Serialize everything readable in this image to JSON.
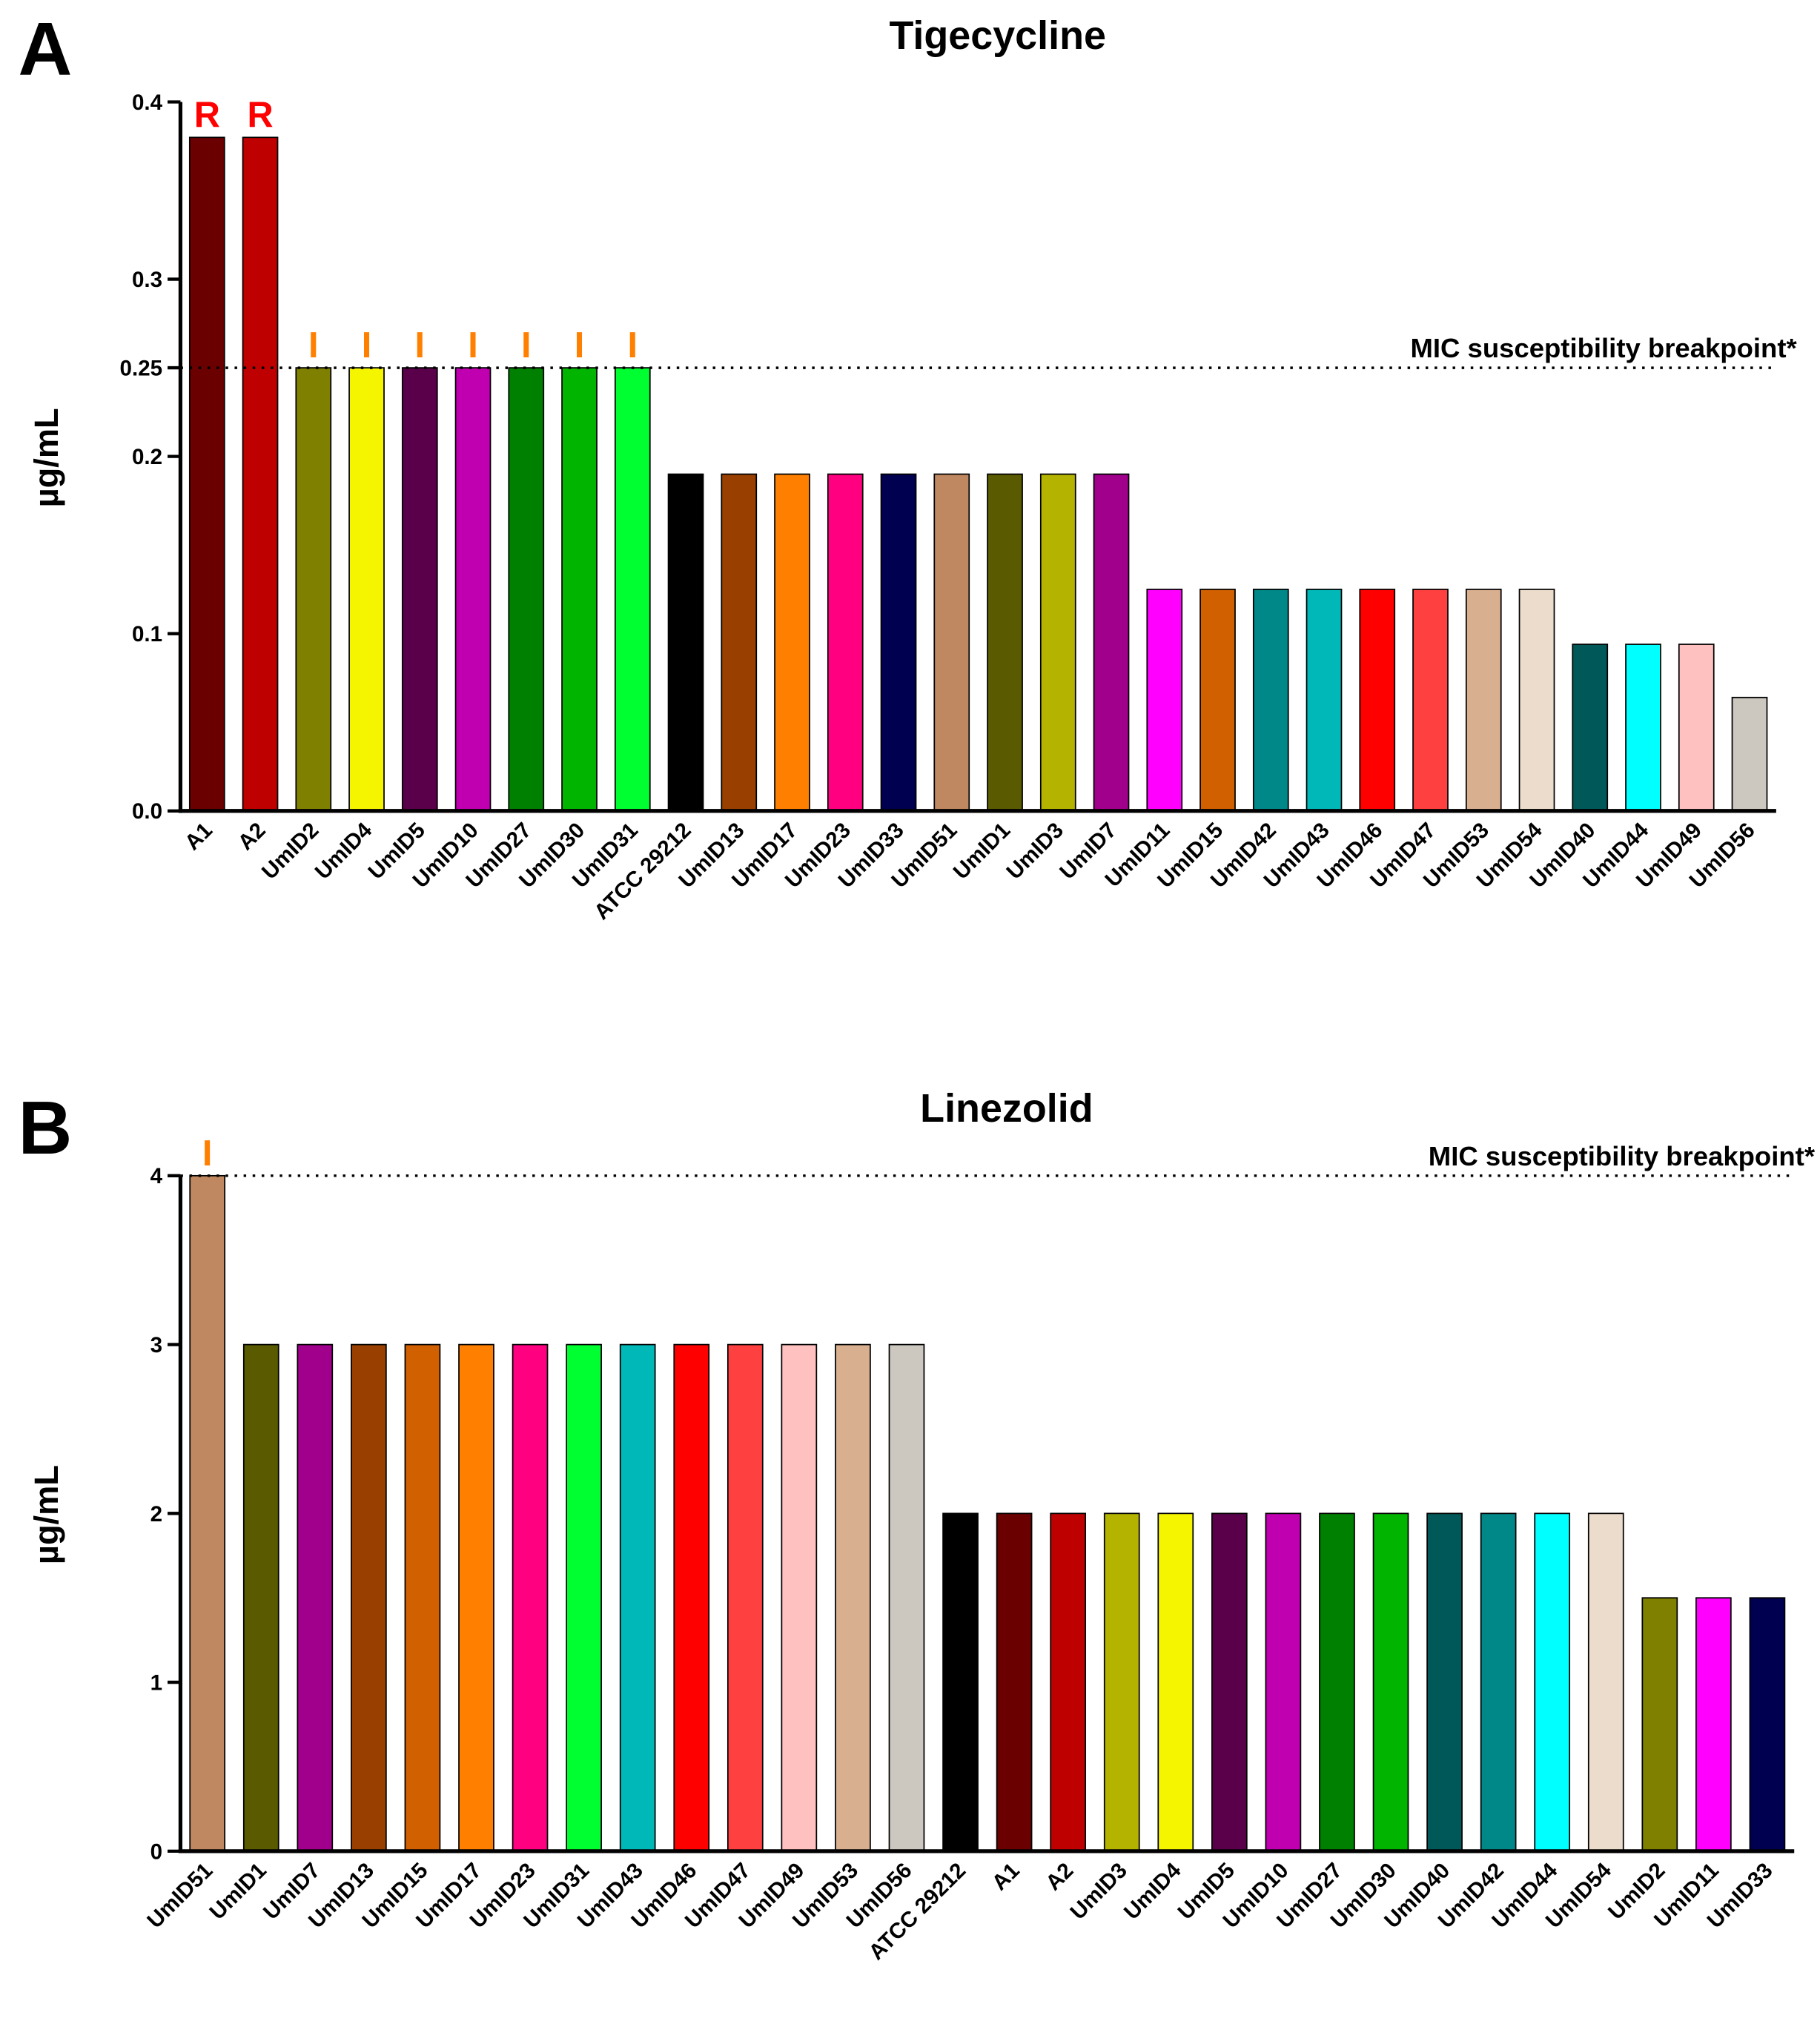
{
  "chart_data": [
    {
      "type": "bar",
      "panel": "A",
      "title": "Tigecycline",
      "y_label": "µg/mL",
      "categories": [
        "A1",
        "A2",
        "UmID2",
        "UmID4",
        "UmID5",
        "UmID10",
        "UmID27",
        "UmID30",
        "UmID31",
        "ATCC 29212",
        "UmID13",
        "UmID17",
        "UmID23",
        "UmID33",
        "UmID51",
        "UmID1",
        "UmID3",
        "UmID7",
        "UmID11",
        "UmID15",
        "UmID42",
        "UmID43",
        "UmID46",
        "UmID47",
        "UmID53",
        "UmID54",
        "UmID40",
        "UmID44",
        "UmID49",
        "UmID56"
      ],
      "values": [
        0.38,
        0.38,
        0.25,
        0.25,
        0.25,
        0.25,
        0.25,
        0.25,
        0.25,
        0.19,
        0.19,
        0.19,
        0.19,
        0.19,
        0.19,
        0.19,
        0.19,
        0.19,
        0.125,
        0.125,
        0.125,
        0.125,
        0.125,
        0.125,
        0.125,
        0.125,
        0.094,
        0.094,
        0.094,
        0.064
      ],
      "colors": [
        "#6b0000",
        "#bf0000",
        "#808000",
        "#f5f500",
        "#5a004a",
        "#c000b0",
        "#008000",
        "#00b400",
        "#00ff30",
        "#000000",
        "#994000",
        "#ff8000",
        "#ff0080",
        "#000050",
        "#c08860",
        "#5a5a00",
        "#b4b400",
        "#a0008c",
        "#ff00ff",
        "#d06000",
        "#008888",
        "#00b8b8",
        "#ff0000",
        "#ff4040",
        "#d8b090",
        "#ecdccc",
        "#005858",
        "#00ffff",
        "#ffc0c0",
        "#ccc8c0"
      ],
      "bar_labels": [
        "R",
        "R",
        "I",
        "I",
        "I",
        "I",
        "I",
        "I",
        "I",
        null,
        null,
        null,
        null,
        null,
        null,
        null,
        null,
        null,
        null,
        null,
        null,
        null,
        null,
        null,
        null,
        null,
        null,
        null,
        null,
        null
      ],
      "bar_label_colors": {
        "R": "#ff0000",
        "I": "#ff8000"
      },
      "reference_line": {
        "value": 0.25,
        "label": "MIC susceptibility breakpoint*"
      },
      "ylim": [
        0,
        0.4
      ],
      "yticks": [
        {
          "value": 0,
          "label": "0.0"
        },
        0.1,
        0.2,
        0.25,
        0.3,
        0.4
      ]
    },
    {
      "type": "bar",
      "panel": "B",
      "title": "Linezolid",
      "y_label": "µg/mL",
      "categories": [
        "UmID51",
        "UmID1",
        "UmID7",
        "UmID13",
        "UmID15",
        "UmID17",
        "UmID23",
        "UmID31",
        "UmID43",
        "UmID46",
        "UmID47",
        "UmID49",
        "UmID53",
        "UmID56",
        "ATCC 29212",
        "A1",
        "A2",
        "UmID3",
        "UmID4",
        "UmID5",
        "UmID10",
        "UmID27",
        "UmID30",
        "UmID40",
        "UmID42",
        "UmID44",
        "UmID54",
        "UmID2",
        "UmID11",
        "UmID33"
      ],
      "values": [
        4,
        3,
        3,
        3,
        3,
        3,
        3,
        3,
        3,
        3,
        3,
        3,
        3,
        3,
        2,
        2,
        2,
        2,
        2,
        2,
        2,
        2,
        2,
        2,
        2,
        2,
        2,
        1.5,
        1.5,
        1.5
      ],
      "colors": [
        "#c08860",
        "#5a5a00",
        "#a0008c",
        "#994000",
        "#d06000",
        "#ff8000",
        "#ff0080",
        "#00ff30",
        "#00b8b8",
        "#ff0000",
        "#ff4040",
        "#ffc0c0",
        "#d8b090",
        "#ccc8c0",
        "#000000",
        "#6b0000",
        "#bf0000",
        "#b4b400",
        "#f5f500",
        "#5a004a",
        "#c000b0",
        "#008000",
        "#00b400",
        "#005858",
        "#008888",
        "#00ffff",
        "#ecdccc",
        "#808000",
        "#ff00ff",
        "#000050"
      ],
      "bar_labels": [
        "I",
        null,
        null,
        null,
        null,
        null,
        null,
        null,
        null,
        null,
        null,
        null,
        null,
        null,
        null,
        null,
        null,
        null,
        null,
        null,
        null,
        null,
        null,
        null,
        null,
        null,
        null,
        null,
        null,
        null
      ],
      "bar_label_colors": {
        "I": "#ff8000"
      },
      "reference_line": {
        "value": 4,
        "label": "MIC susceptibility breakpoint*"
      },
      "ylim": [
        0,
        4
      ],
      "yticks": [
        0,
        1,
        2,
        3,
        4
      ]
    }
  ]
}
